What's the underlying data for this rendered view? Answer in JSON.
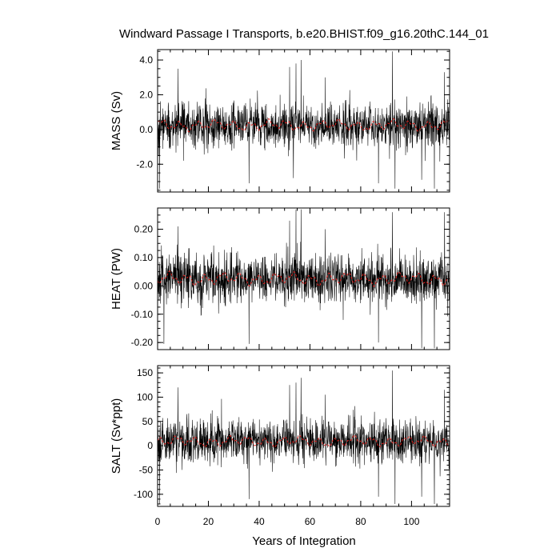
{
  "title": "Windward Passage I Transports, b.e20.BHIST.f09_g16.20thC.144_01",
  "xlabel": "Years of Integration",
  "x_ticks": [
    "0",
    "20",
    "40",
    "60",
    "80",
    "100"
  ],
  "colors": {
    "raw": "#000000",
    "smooth": "#e0201c",
    "axes": "#000000",
    "background": "#ffffff"
  },
  "chart_data": [
    {
      "type": "line",
      "ylabel": "MASS (Sv)",
      "xlim": [
        0,
        115
      ],
      "ylim": [
        -3.6,
        4.6
      ],
      "y_tick_values": [
        4.0,
        2.0,
        0.0,
        -2.0
      ],
      "y_tick_labels": [
        "4.0",
        "2.0",
        "0.0",
        "-2.0"
      ],
      "y_minor_step": 0.5,
      "series": [
        {
          "style": "raw",
          "mean": 0.25,
          "noise_sd": 0.65,
          "peaks": [
            [
              8.0,
              3.5
            ],
            [
              10.2,
              -1.8
            ],
            [
              0.8,
              -3.4
            ],
            [
              36.0,
              -3.1
            ],
            [
              52.0,
              3.6
            ],
            [
              53.5,
              -2.8
            ],
            [
              54.5,
              3.8
            ],
            [
              56.5,
              4.0
            ],
            [
              66.0,
              3.0
            ],
            [
              87.0,
              -3.1
            ],
            [
              92.5,
              4.5
            ],
            [
              93.5,
              -3.4
            ],
            [
              104.0,
              -2.9
            ],
            [
              109.0,
              -3.4
            ],
            [
              113.0,
              3.3
            ]
          ]
        },
        {
          "style": "smooth",
          "mean": 0.25,
          "amplitude": 0.35
        }
      ]
    },
    {
      "type": "line",
      "ylabel": "HEAT (PW)",
      "xlim": [
        0,
        115
      ],
      "ylim": [
        -0.225,
        0.275
      ],
      "y_tick_values": [
        0.2,
        0.1,
        0.0,
        -0.1,
        -0.2
      ],
      "y_tick_labels": [
        "0.20",
        "0.10",
        "0.00",
        "-0.10",
        "-0.20"
      ],
      "y_minor_step": 0.025,
      "series": [
        {
          "style": "raw",
          "mean": 0.025,
          "noise_sd": 0.045,
          "peaks": [
            [
              2.5,
              -0.205
            ],
            [
              8.0,
              0.21
            ],
            [
              36.0,
              -0.205
            ],
            [
              52.0,
              0.23
            ],
            [
              54.5,
              0.27
            ],
            [
              56.5,
              0.27
            ],
            [
              66.0,
              0.2
            ],
            [
              87.0,
              -0.2
            ],
            [
              92.5,
              0.26
            ],
            [
              104.0,
              -0.22
            ],
            [
              109.0,
              -0.22
            ],
            [
              113.0,
              0.26
            ]
          ]
        },
        {
          "style": "smooth",
          "mean": 0.025,
          "amplitude": 0.025
        }
      ]
    },
    {
      "type": "line",
      "ylabel": "SALT (Sv*ppt)",
      "xlim": [
        0,
        115
      ],
      "ylim": [
        -125,
        165
      ],
      "y_tick_values": [
        150,
        100,
        50,
        0,
        -50,
        -100
      ],
      "y_tick_labels": [
        "150",
        "100",
        "50",
        "0",
        "-50",
        "-100"
      ],
      "y_minor_step": 10,
      "series": [
        {
          "style": "raw",
          "mean": 9,
          "noise_sd": 23,
          "peaks": [
            [
              8.0,
              120
            ],
            [
              0.8,
              -120
            ],
            [
              36.0,
              -110
            ],
            [
              52.0,
              125
            ],
            [
              54.5,
              130
            ],
            [
              56.5,
              140
            ],
            [
              66.0,
              105
            ],
            [
              87.0,
              -105
            ],
            [
              92.5,
              155
            ],
            [
              93.5,
              -120
            ],
            [
              104.0,
              -105
            ],
            [
              109.0,
              -120
            ],
            [
              113.0,
              115
            ]
          ]
        },
        {
          "style": "smooth",
          "mean": 9,
          "amplitude": 12
        }
      ]
    }
  ]
}
